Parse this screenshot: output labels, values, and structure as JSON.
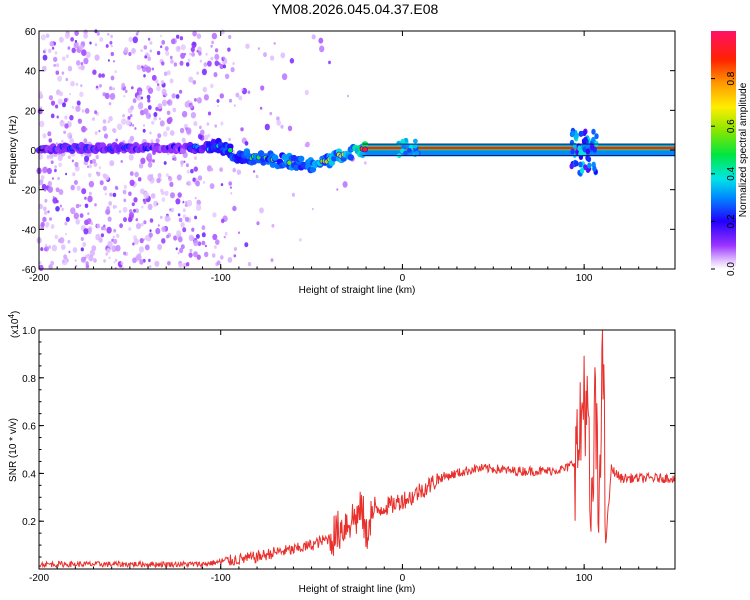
{
  "title": "YM08.2026.045.04.37.E08",
  "chart_data": [
    {
      "type": "heatmap",
      "xlabel": "Height of straight line (km)",
      "ylabel": "Frequency (Hz)",
      "xlim": [
        -200,
        150
      ],
      "ylim": [
        -60,
        60
      ],
      "xticks": [
        -200,
        -100,
        0,
        100
      ],
      "xtick_labels": [
        "-200",
        "-100",
        "0",
        "100"
      ],
      "yticks": [
        60,
        40,
        20,
        0,
        -20,
        -40,
        -60
      ],
      "ytick_labels": [
        "60",
        "40",
        "20",
        "0",
        "-20",
        "-40",
        "-60"
      ],
      "colorbar": {
        "label": "Normalized spectral amplitude",
        "range": [
          0,
          1
        ],
        "ticks": [
          0.0,
          0.2,
          0.4,
          0.6,
          0.8
        ],
        "tick_labels": [
          "0.0",
          "0.2",
          "0.4",
          "0.6",
          "0.8"
        ]
      },
      "ridge": [
        {
          "x": -200,
          "y": 1,
          "amp": 0.25
        },
        {
          "x": -160,
          "y": 1,
          "amp": 0.25
        },
        {
          "x": -120,
          "y": 1,
          "amp": 0.2
        },
        {
          "x": -110,
          "y": 1,
          "amp": 0.35
        },
        {
          "x": -100,
          "y": 2,
          "amp": 0.45
        },
        {
          "x": -90,
          "y": -3,
          "amp": 0.5
        },
        {
          "x": -80,
          "y": -4,
          "amp": 0.5
        },
        {
          "x": -70,
          "y": -5,
          "amp": 0.55
        },
        {
          "x": -60,
          "y": -6,
          "amp": 0.55
        },
        {
          "x": -50,
          "y": -8,
          "amp": 0.6
        },
        {
          "x": -40,
          "y": -5,
          "amp": 0.6
        },
        {
          "x": -30,
          "y": -1,
          "amp": 0.65
        },
        {
          "x": -20,
          "y": 1,
          "amp": 0.9
        },
        {
          "x": 0,
          "y": 1,
          "amp": 0.95
        },
        {
          "x": 50,
          "y": 1,
          "amp": 0.95
        },
        {
          "x": 90,
          "y": 1,
          "amp": 0.95
        },
        {
          "x": 100,
          "y": 2,
          "amp": 0.9
        },
        {
          "x": 105,
          "y": -5,
          "amp": 0.6
        },
        {
          "x": 150,
          "y": 1,
          "amp": 0.95
        }
      ]
    },
    {
      "type": "line",
      "xlabel": "Height of straight line (km)",
      "ylabel": "SNR (10 * v/v)",
      "multiplier_label": "(x10",
      "multiplier_exp": "4",
      "multiplier_close": ")",
      "xlim": [
        -200,
        150
      ],
      "ylim": [
        0,
        1.0
      ],
      "xticks": [
        -200,
        -100,
        0,
        100
      ],
      "xtick_labels": [
        "-200",
        "-100",
        "0",
        "100"
      ],
      "yticks": [
        0.2,
        0.4,
        0.6,
        0.8,
        1.0
      ],
      "ytick_labels": [
        "0.2",
        "0.4",
        "0.6",
        "0.8",
        "1.0"
      ],
      "color": "#e8302c",
      "series": [
        {
          "x": [
            -200,
            -180,
            -160,
            -140,
            -120,
            -110,
            -100,
            -90,
            -80,
            -70,
            -60,
            -50,
            -40,
            -35,
            -30,
            -25,
            -22,
            -20,
            -18,
            -15,
            -10,
            -5,
            0,
            5,
            10,
            15,
            20,
            30,
            40,
            50,
            60,
            70,
            80,
            90,
            95,
            98,
            100,
            102,
            104,
            106,
            108,
            110,
            112,
            115,
            120,
            130,
            140,
            150
          ],
          "y": [
            0.02,
            0.02,
            0.02,
            0.02,
            0.02,
            0.02,
            0.03,
            0.04,
            0.05,
            0.07,
            0.08,
            0.1,
            0.13,
            0.16,
            0.2,
            0.22,
            0.25,
            0.12,
            0.22,
            0.24,
            0.26,
            0.27,
            0.29,
            0.3,
            0.33,
            0.35,
            0.38,
            0.4,
            0.42,
            0.42,
            0.41,
            0.41,
            0.41,
            0.42,
            0.45,
            0.55,
            0.78,
            0.6,
            0.1,
            0.7,
            0.2,
            1.0,
            0.12,
            0.42,
            0.38,
            0.38,
            0.38,
            0.38
          ]
        }
      ]
    }
  ]
}
